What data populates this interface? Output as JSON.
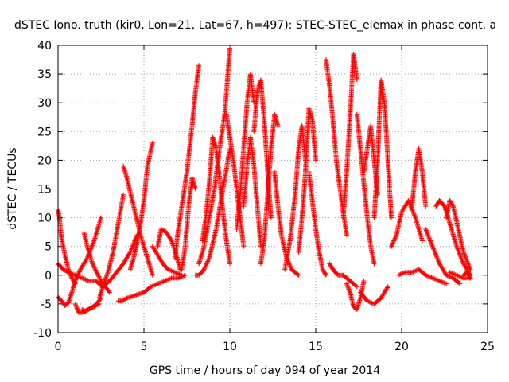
{
  "chart_data": {
    "type": "scatter",
    "title": "dSTEC Iono. truth (kir0, Lon=21, Lat=67, h=497): STEC-STEC_elemax in phase cont. a",
    "xlabel": "GPS time / hours of day 094 of year 2014",
    "ylabel": "dSTEC  / TECUs",
    "xlim": [
      0,
      25
    ],
    "ylim": [
      -10,
      40
    ],
    "xticks": [
      0,
      5,
      10,
      15,
      20,
      25
    ],
    "yticks": [
      -10,
      -5,
      0,
      5,
      10,
      15,
      20,
      25,
      30,
      35,
      40
    ],
    "xtick_labels": [
      "0",
      "5",
      "10",
      "15",
      "20",
      "25"
    ],
    "ytick_labels": [
      "-10",
      "-5",
      "0",
      "5",
      "10",
      "15",
      "20",
      "25",
      "30",
      "35",
      "40"
    ],
    "grid": true,
    "legend": "none",
    "marker": "+",
    "color": "#ff0000",
    "series": [
      {
        "x": [
          0.0,
          0.1,
          0.2,
          0.4,
          0.6,
          0.8,
          1.0
        ],
        "y": [
          11.5,
          9.5,
          6.5,
          3.5,
          1.0,
          -0.5,
          -1.5
        ]
      },
      {
        "x": [
          0.0,
          0.3,
          0.6,
          1.0,
          1.4,
          1.8,
          2.2
        ],
        "y": [
          2.0,
          1.0,
          0.5,
          0.0,
          -0.5,
          -1.0,
          -1.0
        ]
      },
      {
        "x": [
          0.0,
          0.2,
          0.4,
          0.6
        ],
        "y": [
          -3.8,
          -4.5,
          -5.3,
          -4.8
        ]
      },
      {
        "x": [
          0.6,
          0.8,
          1.0,
          1.3,
          1.7,
          2.1,
          2.5
        ],
        "y": [
          -4.8,
          -3.0,
          -1.0,
          1.0,
          3.0,
          6.0,
          10.0
        ]
      },
      {
        "x": [
          1.0,
          1.2,
          1.4,
          1.7,
          2.1,
          2.5
        ],
        "y": [
          -5.0,
          -6.5,
          -6.5,
          -6.0,
          -5.5,
          -4.0
        ]
      },
      {
        "x": [
          1.4,
          1.6,
          2.0,
          2.4
        ],
        "y": [
          -6.0,
          -6.3,
          -5.5,
          -5.0
        ]
      },
      {
        "x": [
          2.4,
          2.6,
          2.9,
          3.2,
          3.5,
          3.8
        ],
        "y": [
          -4.0,
          -2.0,
          0.5,
          4.0,
          9.0,
          14.0
        ]
      },
      {
        "x": [
          3.8,
          4.0,
          4.4,
          4.8,
          5.2,
          5.5
        ],
        "y": [
          19.0,
          17.0,
          12.0,
          7.0,
          3.0,
          0.0
        ]
      },
      {
        "x": [
          2.2,
          2.6,
          3.0,
          3.4,
          3.8,
          4.2,
          4.6
        ],
        "y": [
          -1.0,
          -2.0,
          -1.0,
          0.5,
          2.0,
          4.0,
          7.0
        ]
      },
      {
        "x": [
          1.5,
          1.7,
          2.0,
          2.5,
          3.0
        ],
        "y": [
          7.5,
          5.0,
          2.0,
          -1.0,
          -3.0
        ]
      },
      {
        "x": [
          3.5,
          3.7,
          4.0,
          4.5,
          5.0
        ],
        "y": [
          -4.5,
          -4.5,
          -4.0,
          -3.5,
          -3.0
        ]
      },
      {
        "x": [
          4.2,
          4.4,
          4.7,
          5.0,
          5.2,
          5.5
        ],
        "y": [
          1.0,
          3.0,
          7.0,
          13.0,
          19.0,
          23.0
        ]
      },
      {
        "x": [
          5.0,
          5.4,
          5.8,
          6.2,
          6.6,
          7.0,
          7.4
        ],
        "y": [
          -3.0,
          -2.0,
          -1.5,
          -1.0,
          -0.5,
          -0.5,
          0.0
        ]
      },
      {
        "x": [
          5.5,
          5.8,
          6.1,
          6.4,
          6.8,
          7.2
        ],
        "y": [
          5.0,
          3.5,
          2.0,
          1.0,
          0.5,
          0.0
        ]
      },
      {
        "x": [
          5.8,
          6.0,
          6.3,
          6.6,
          6.9,
          7.1
        ],
        "y": [
          5.0,
          8.0,
          7.5,
          6.0,
          3.5,
          1.0
        ]
      },
      {
        "x": [
          6.8,
          7.0,
          7.2,
          7.5,
          7.8,
          8.0,
          8.2
        ],
        "y": [
          3.0,
          8.0,
          12.0,
          18.0,
          26.0,
          32.0,
          36.5
        ]
      },
      {
        "x": [
          7.2,
          7.4,
          7.6,
          7.8,
          8.0
        ],
        "y": [
          1.0,
          5.0,
          12.0,
          17.0,
          15.0
        ]
      },
      {
        "x": [
          8.0,
          8.2,
          8.5,
          8.8,
          9.2,
          9.6,
          10.0
        ],
        "y": [
          0.0,
          0.0,
          1.0,
          3.0,
          8.0,
          15.0,
          22.0
        ]
      },
      {
        "x": [
          8.2,
          8.5,
          8.8,
          9.1,
          9.4,
          9.7,
          10.0
        ],
        "y": [
          2.0,
          5.0,
          10.0,
          15.0,
          22.0,
          28.0,
          39.5
        ]
      },
      {
        "x": [
          8.4,
          8.6,
          8.8,
          9.0,
          9.2
        ],
        "y": [
          6.0,
          10.0,
          16.0,
          24.0,
          22.0
        ]
      },
      {
        "x": [
          9.2,
          9.4,
          9.6,
          9.8,
          10.0
        ],
        "y": [
          22.0,
          17.0,
          11.0,
          6.0,
          2.0
        ]
      },
      {
        "x": [
          9.8,
          10.0,
          10.2,
          10.4,
          10.6,
          10.8
        ],
        "y": [
          28.0,
          24.0,
          20.0,
          15.0,
          10.0,
          5.0
        ]
      },
      {
        "x": [
          10.4,
          10.6,
          10.8,
          11.0,
          11.2,
          11.4
        ],
        "y": [
          8.0,
          14.0,
          22.0,
          30.0,
          35.0,
          30.0
        ]
      },
      {
        "x": [
          10.8,
          11.0,
          11.2,
          11.4,
          11.6,
          11.8
        ],
        "y": [
          12.0,
          19.0,
          24.0,
          19.0,
          12.0,
          5.0
        ]
      },
      {
        "x": [
          11.4,
          11.6,
          11.8,
          12.0,
          12.2,
          12.4
        ],
        "y": [
          25.0,
          32.0,
          34.0,
          27.0,
          18.0,
          10.0
        ]
      },
      {
        "x": [
          11.8,
          12.0,
          12.2,
          12.4,
          12.6,
          12.8
        ],
        "y": [
          2.0,
          6.0,
          14.0,
          22.0,
          28.0,
          26.0
        ]
      },
      {
        "x": [
          12.6,
          12.8,
          13.0,
          13.3,
          13.6,
          14.0
        ],
        "y": [
          18.0,
          12.0,
          7.0,
          3.0,
          1.0,
          0.0
        ]
      },
      {
        "x": [
          13.2,
          13.5,
          13.8,
          14.0,
          14.2,
          14.4
        ],
        "y": [
          1.0,
          6.0,
          14.0,
          22.0,
          26.0,
          20.0
        ]
      },
      {
        "x": [
          14.0,
          14.2,
          14.4,
          14.6,
          14.8,
          15.0
        ],
        "y": [
          4.0,
          10.0,
          18.0,
          29.0,
          27.0,
          20.0
        ]
      },
      {
        "x": [
          14.6,
          14.8,
          15.0,
          15.2,
          15.4,
          15.6
        ],
        "y": [
          18.0,
          13.0,
          8.0,
          4.0,
          1.0,
          0.0
        ]
      },
      {
        "x": [
          15.6,
          15.8,
          16.0,
          16.2,
          16.5,
          16.8
        ],
        "y": [
          37.5,
          33.0,
          27.0,
          20.0,
          13.0,
          7.0
        ]
      },
      {
        "x": [
          15.8,
          16.0,
          16.3,
          16.6,
          17.0,
          17.4
        ],
        "y": [
          2.0,
          1.0,
          0.0,
          0.0,
          -1.0,
          -2.0
        ]
      },
      {
        "x": [
          16.6,
          16.8,
          17.0,
          17.2,
          17.4
        ],
        "y": [
          10.0,
          18.0,
          28.0,
          38.5,
          34.0
        ]
      },
      {
        "x": [
          16.8,
          17.0,
          17.2,
          17.4,
          17.6,
          17.8
        ],
        "y": [
          -1.5,
          -3.0,
          -5.5,
          -6.0,
          -4.0,
          -1.0
        ]
      },
      {
        "x": [
          17.4,
          17.6,
          17.8,
          18.0,
          18.2,
          18.4
        ],
        "y": [
          28.0,
          22.0,
          16.0,
          10.0,
          5.0,
          2.0
        ]
      },
      {
        "x": [
          17.8,
          18.0,
          18.2,
          18.4,
          18.6
        ],
        "y": [
          18.0,
          22.0,
          26.0,
          20.0,
          14.0
        ]
      },
      {
        "x": [
          18.4,
          18.6,
          18.8,
          19.0,
          19.2,
          19.4
        ],
        "y": [
          10.0,
          20.0,
          34.0,
          30.0,
          20.0,
          10.0
        ]
      },
      {
        "x": [
          17.6,
          18.0,
          18.4,
          18.8,
          19.2
        ],
        "y": [
          -3.0,
          -4.5,
          -5.0,
          -4.0,
          -2.0
        ]
      },
      {
        "x": [
          19.4,
          19.7,
          20.0,
          20.4,
          20.8,
          21.2
        ],
        "y": [
          5.0,
          7.0,
          11.0,
          13.0,
          10.0,
          6.0
        ]
      },
      {
        "x": [
          20.6,
          20.8,
          21.0,
          21.2,
          21.4
        ],
        "y": [
          12.0,
          18.0,
          22.0,
          18.0,
          12.0
        ]
      },
      {
        "x": [
          19.8,
          20.2,
          20.6,
          21.0,
          21.4,
          21.8,
          22.2,
          22.6
        ],
        "y": [
          0.0,
          0.5,
          0.5,
          1.0,
          0.0,
          -0.5,
          -1.0,
          -1.5
        ]
      },
      {
        "x": [
          21.4,
          21.8,
          22.2,
          22.6,
          23.0,
          23.4
        ],
        "y": [
          8.0,
          5.0,
          2.0,
          0.0,
          -0.5,
          -1.5
        ]
      },
      {
        "x": [
          22.0,
          22.2,
          22.5,
          22.8,
          23.2,
          23.6,
          24.0
        ],
        "y": [
          12.0,
          13.0,
          12.0,
          9.0,
          5.0,
          2.0,
          0.0
        ]
      },
      {
        "x": [
          22.6,
          22.8,
          23.0,
          23.3,
          23.6,
          24.0
        ],
        "y": [
          10.0,
          13.0,
          12.0,
          8.0,
          4.0,
          1.0
        ]
      },
      {
        "x": [
          22.8,
          23.2,
          23.6,
          24.0
        ],
        "y": [
          0.5,
          0.0,
          -0.5,
          -0.5
        ]
      },
      {
        "x": [
          23.6,
          23.8,
          24.0
        ],
        "y": [
          0.0,
          0.5,
          -0.5
        ]
      }
    ]
  }
}
